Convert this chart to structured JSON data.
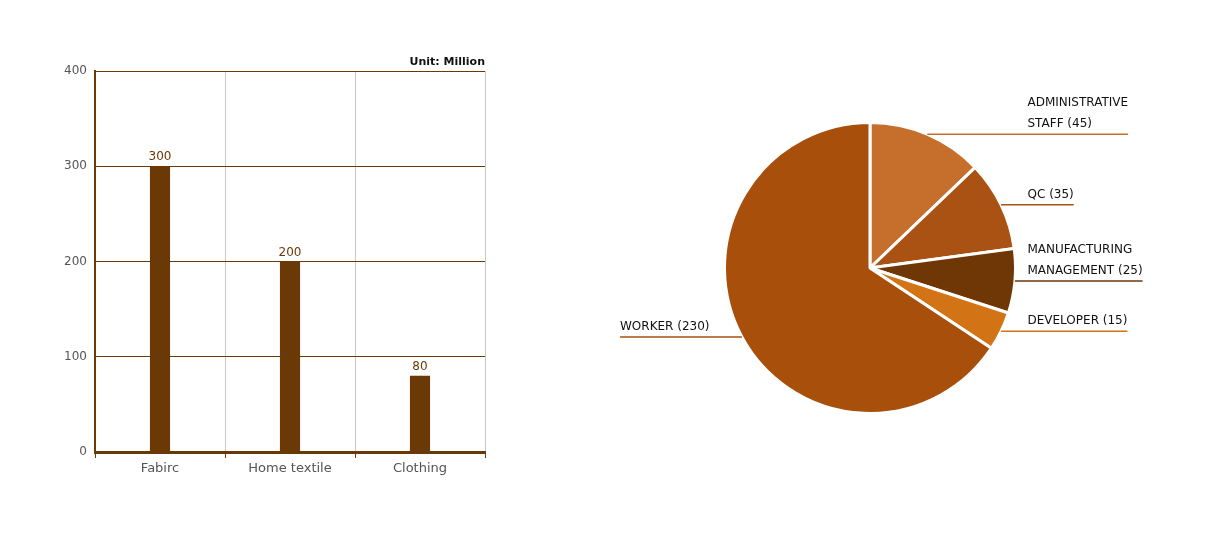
{
  "chart_data": [
    {
      "type": "bar",
      "categories": [
        "Fabirc",
        "Home textile",
        "Clothing"
      ],
      "values": [
        300,
        200,
        80
      ],
      "color": "#6b3906",
      "ylim": [
        0,
        400
      ],
      "yticks": [
        0,
        100,
        200,
        300,
        400
      ],
      "grid": true,
      "data_labels": true,
      "annotations": [
        "Unit: Million"
      ]
    },
    {
      "type": "pie",
      "categories": [
        "ADMINISTRATIVE STAFF",
        "QC",
        "MANUFACTURING MANAGEMENT",
        "DEVELOPER",
        "WORKER"
      ],
      "values": [
        45,
        35,
        25,
        15,
        230
      ],
      "value_labels": [
        "(45)",
        "(35)",
        "(25)",
        "(15)",
        "(230)"
      ],
      "colors": [
        "#c66e2c",
        "#a95213",
        "#6f3606",
        "#d27415",
        "#a94f0c"
      ]
    }
  ]
}
